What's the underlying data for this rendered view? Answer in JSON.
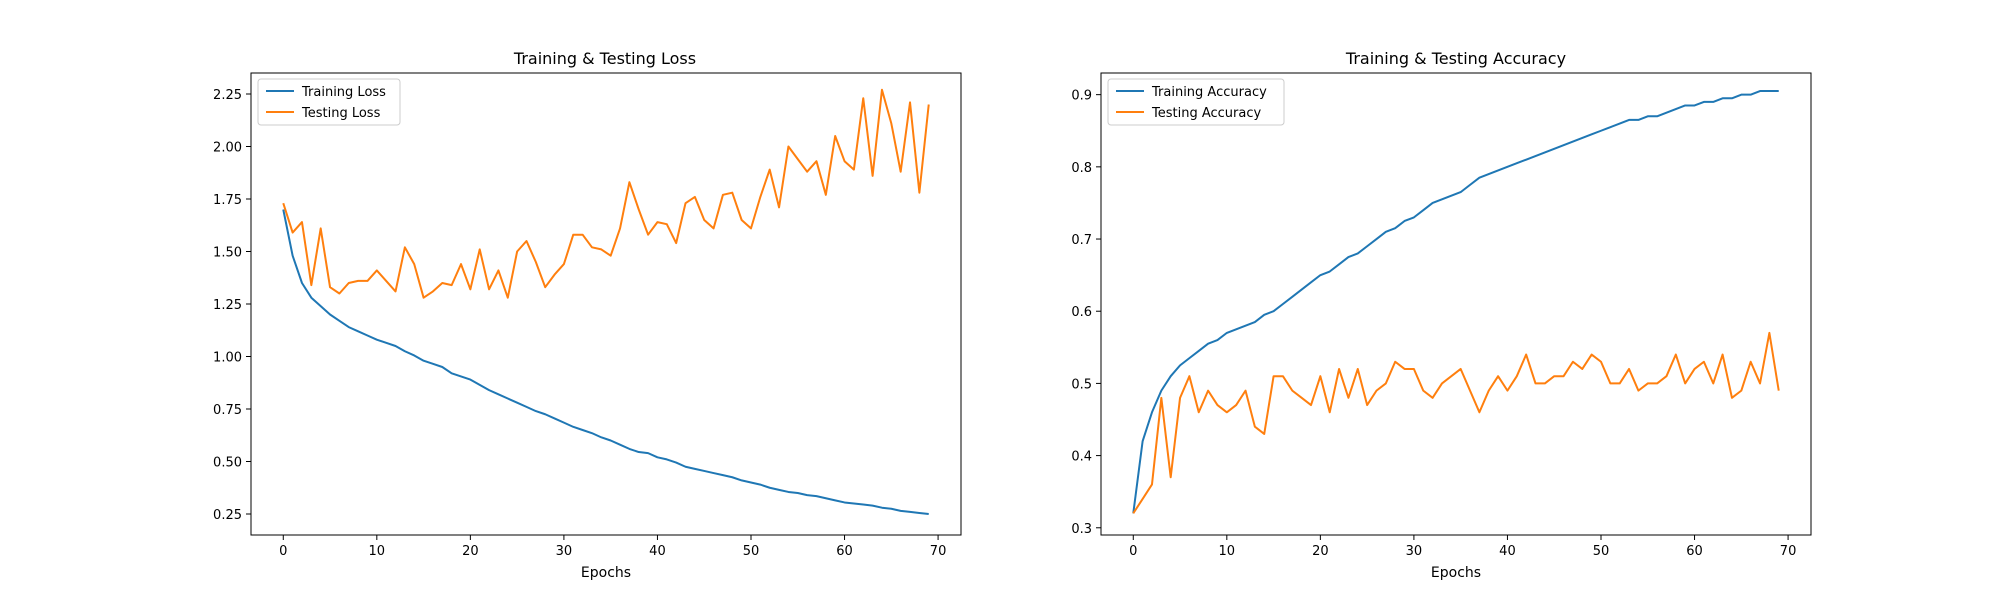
{
  "chart_data": [
    {
      "type": "line",
      "title": "Training & Testing Loss",
      "xlabel": "Epochs",
      "ylabel": "",
      "xlim": [
        -3.45,
        72.45
      ],
      "ylim": [
        0.15,
        2.35
      ],
      "xticks": [
        0,
        10,
        20,
        30,
        40,
        50,
        60,
        70
      ],
      "yticks": [
        0.25,
        0.5,
        0.75,
        1.0,
        1.25,
        1.5,
        1.75,
        2.0,
        2.25
      ],
      "ytick_format": 2,
      "legend": "upper-left",
      "grid": false,
      "series": [
        {
          "name": "Training Loss",
          "color": "#1f77b4",
          "values": [
            1.7,
            1.48,
            1.35,
            1.28,
            1.24,
            1.2,
            1.17,
            1.14,
            1.12,
            1.1,
            1.08,
            1.065,
            1.05,
            1.025,
            1.005,
            0.98,
            0.965,
            0.95,
            0.92,
            0.905,
            0.89,
            0.865,
            0.84,
            0.82,
            0.8,
            0.78,
            0.76,
            0.74,
            0.725,
            0.705,
            0.685,
            0.665,
            0.65,
            0.635,
            0.615,
            0.6,
            0.58,
            0.56,
            0.545,
            0.54,
            0.52,
            0.51,
            0.495,
            0.475,
            0.465,
            0.455,
            0.445,
            0.435,
            0.425,
            0.41,
            0.4,
            0.39,
            0.375,
            0.365,
            0.355,
            0.35,
            0.34,
            0.335,
            0.325,
            0.315,
            0.305,
            0.3,
            0.295,
            0.29,
            0.28,
            0.275,
            0.265,
            0.26,
            0.255,
            0.25
          ]
        },
        {
          "name": "Testing Loss",
          "color": "#ff7f0e",
          "values": [
            1.73,
            1.59,
            1.64,
            1.34,
            1.61,
            1.33,
            1.3,
            1.35,
            1.36,
            1.36,
            1.41,
            1.36,
            1.31,
            1.52,
            1.44,
            1.28,
            1.31,
            1.35,
            1.34,
            1.44,
            1.32,
            1.51,
            1.32,
            1.41,
            1.28,
            1.5,
            1.55,
            1.45,
            1.33,
            1.39,
            1.44,
            1.58,
            1.58,
            1.52,
            1.51,
            1.48,
            1.61,
            1.83,
            1.7,
            1.58,
            1.64,
            1.63,
            1.54,
            1.73,
            1.76,
            1.65,
            1.61,
            1.77,
            1.78,
            1.65,
            1.61,
            1.76,
            1.89,
            1.71,
            2.0,
            1.94,
            1.88,
            1.93,
            1.77,
            2.05,
            1.93,
            1.89,
            2.23,
            1.86,
            2.27,
            2.11,
            1.88,
            2.21,
            1.78,
            2.2
          ]
        }
      ]
    },
    {
      "type": "line",
      "title": "Training & Testing Accuracy",
      "xlabel": "Epochs",
      "ylabel": "",
      "xlim": [
        -3.45,
        72.45
      ],
      "ylim": [
        0.29,
        0.93
      ],
      "xticks": [
        0,
        10,
        20,
        30,
        40,
        50,
        60,
        70
      ],
      "yticks": [
        0.3,
        0.4,
        0.5,
        0.6,
        0.7,
        0.8,
        0.9
      ],
      "ytick_format": 1,
      "legend": "upper-left",
      "grid": false,
      "series": [
        {
          "name": "Training Accuracy",
          "color": "#1f77b4",
          "values": [
            0.32,
            0.42,
            0.46,
            0.49,
            0.51,
            0.525,
            0.535,
            0.545,
            0.555,
            0.56,
            0.57,
            0.575,
            0.58,
            0.585,
            0.595,
            0.6,
            0.61,
            0.62,
            0.63,
            0.64,
            0.65,
            0.655,
            0.665,
            0.675,
            0.68,
            0.69,
            0.7,
            0.71,
            0.715,
            0.725,
            0.73,
            0.74,
            0.75,
            0.755,
            0.76,
            0.765,
            0.775,
            0.785,
            0.79,
            0.795,
            0.8,
            0.805,
            0.81,
            0.815,
            0.82,
            0.825,
            0.83,
            0.835,
            0.84,
            0.845,
            0.85,
            0.855,
            0.86,
            0.865,
            0.865,
            0.87,
            0.87,
            0.875,
            0.88,
            0.885,
            0.885,
            0.89,
            0.89,
            0.895,
            0.895,
            0.9,
            0.9,
            0.905,
            0.905,
            0.905
          ]
        },
        {
          "name": "Testing Accuracy",
          "color": "#ff7f0e",
          "values": [
            0.32,
            0.34,
            0.36,
            0.48,
            0.37,
            0.48,
            0.51,
            0.46,
            0.49,
            0.47,
            0.46,
            0.47,
            0.49,
            0.44,
            0.43,
            0.51,
            0.51,
            0.49,
            0.48,
            0.47,
            0.51,
            0.46,
            0.52,
            0.48,
            0.52,
            0.47,
            0.49,
            0.5,
            0.53,
            0.52,
            0.52,
            0.49,
            0.48,
            0.5,
            0.51,
            0.52,
            0.49,
            0.46,
            0.49,
            0.51,
            0.49,
            0.51,
            0.54,
            0.5,
            0.5,
            0.51,
            0.51,
            0.53,
            0.52,
            0.54,
            0.53,
            0.5,
            0.5,
            0.52,
            0.49,
            0.5,
            0.5,
            0.51,
            0.54,
            0.5,
            0.52,
            0.53,
            0.5,
            0.54,
            0.48,
            0.49,
            0.53,
            0.5,
            0.57,
            0.49
          ]
        }
      ]
    }
  ]
}
